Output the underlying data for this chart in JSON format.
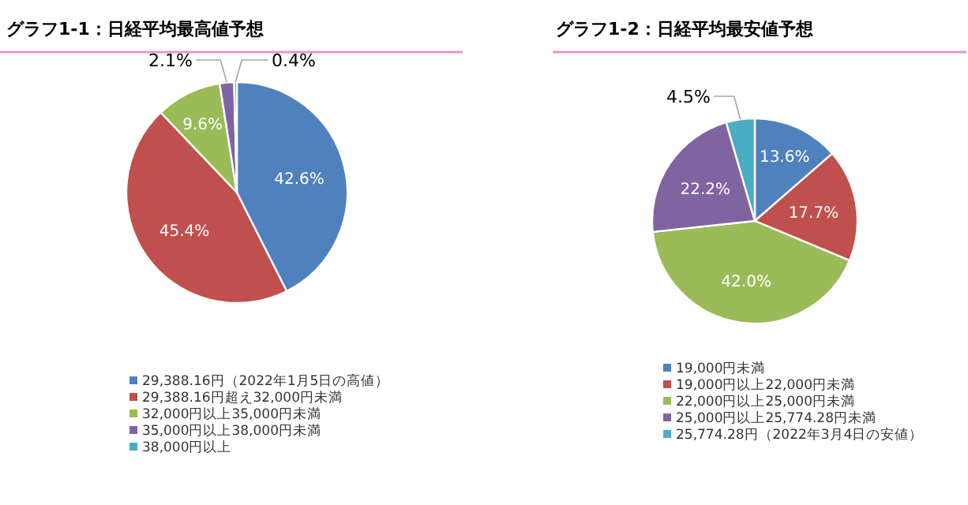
{
  "chart_data": [
    {
      "type": "pie",
      "title": "グラフ1-1：日経平均最高値予想",
      "categories": [
        "29,388.16円（2022年1月5日の高値）",
        "29,388.16円超え32,000円未満",
        "32,000円以上35,000円未満",
        "35,000円以上38,000円未満",
        "38,000円以上"
      ],
      "values": [
        42.6,
        45.4,
        9.6,
        2.1,
        0.4
      ],
      "value_labels": [
        "42.6%",
        "45.4%",
        "9.6%",
        "2.1%",
        "0.4%"
      ],
      "colors": [
        "#4f81bd",
        "#c0504d",
        "#9bbb59",
        "#8064a2",
        "#4bacc6"
      ],
      "legend": "bottom"
    },
    {
      "type": "pie",
      "title": "グラフ1-2：日経平均最安値予想",
      "categories": [
        "19,000円未満",
        "19,000円以上22,000円未満",
        "22,000円以上25,000円未満",
        "25,000円以上25,774.28円未満",
        "25,774.28円（2022年3月4日の安値）"
      ],
      "values": [
        13.6,
        17.7,
        42.0,
        22.2,
        4.5
      ],
      "value_labels": [
        "13.6%",
        "17.7%",
        "42.0%",
        "22.2%",
        "4.5%"
      ],
      "colors": [
        "#4f81bd",
        "#c0504d",
        "#9bbb59",
        "#8064a2",
        "#4bacc6"
      ],
      "legend": "bottom"
    }
  ]
}
